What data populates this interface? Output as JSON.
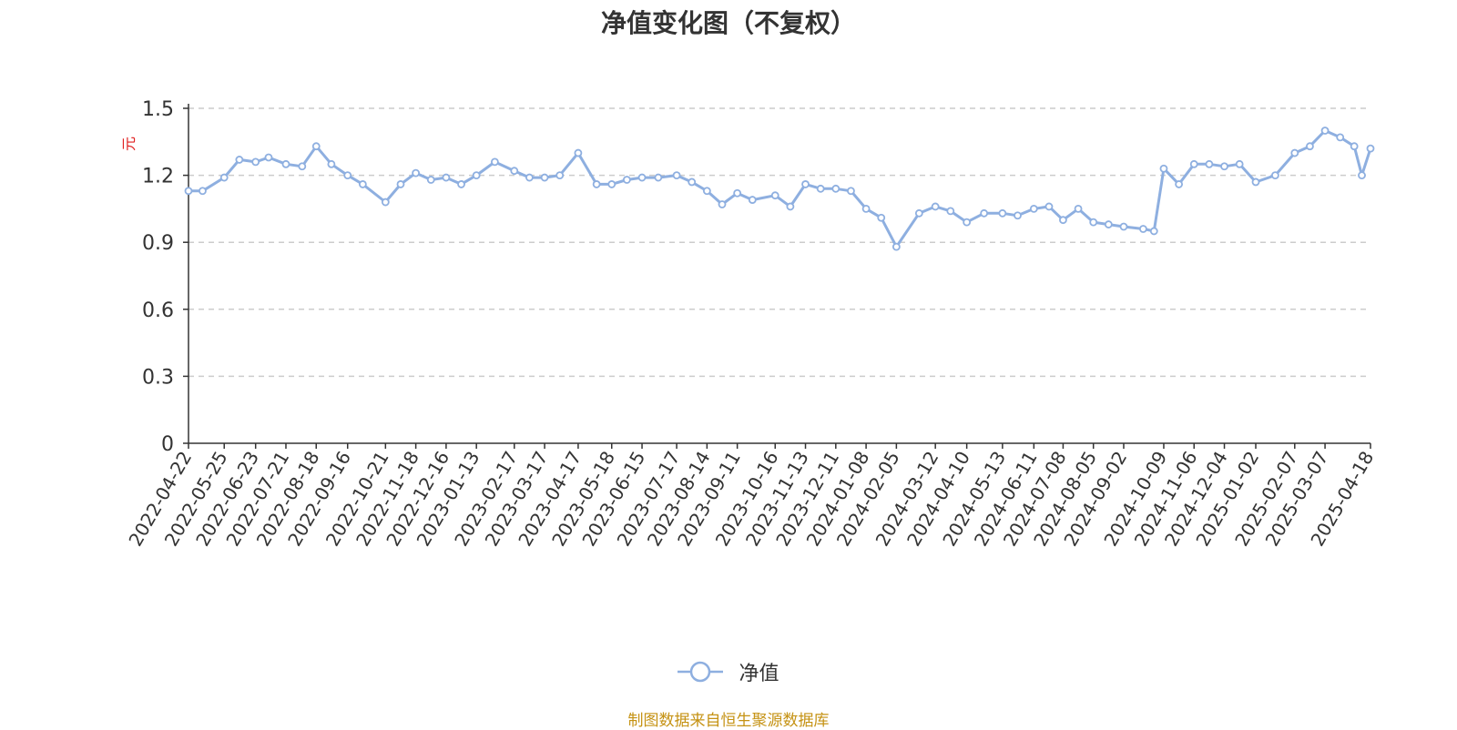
{
  "chart_data": {
    "type": "line",
    "title": "净值变化图（不复权）",
    "ylabel": "元",
    "xlabel": "",
    "ylim": [
      0,
      1.5
    ],
    "yticks": [
      "0",
      "0.3",
      "0.6",
      "0.9",
      "1.2",
      "1.5"
    ],
    "grid": true,
    "legend_position": "bottom-center",
    "line_color": "#8eafe0",
    "ylabel_color": "#e02020",
    "x_tick_labels": [
      "2022-04-22",
      "2022-05-25",
      "2022-06-23",
      "2022-07-21",
      "2022-08-18",
      "2022-09-16",
      "2022-10-21",
      "2022-11-18",
      "2022-12-16",
      "2023-01-13",
      "2023-02-17",
      "2023-03-17",
      "2023-04-17",
      "2023-05-18",
      "2023-06-15",
      "2023-07-17",
      "2023-08-14",
      "2023-09-11",
      "2023-10-16",
      "2023-11-13",
      "2023-12-11",
      "2024-01-08",
      "2024-02-05",
      "2024-03-12",
      "2024-04-10",
      "2024-05-13",
      "2024-06-11",
      "2024-07-08",
      "2024-08-05",
      "2024-09-02",
      "2024-10-09",
      "2024-11-06",
      "2024-12-04",
      "2025-01-02",
      "2025-02-07",
      "2025-03-07",
      "2025-04-18"
    ],
    "series": [
      {
        "name": "净值",
        "x": [
          "2022-04-22",
          "2022-05-05",
          "2022-05-25",
          "2022-06-08",
          "2022-06-23",
          "2022-07-05",
          "2022-07-21",
          "2022-08-05",
          "2022-08-18",
          "2022-09-01",
          "2022-09-16",
          "2022-09-30",
          "2022-10-21",
          "2022-11-04",
          "2022-11-18",
          "2022-12-02",
          "2022-12-16",
          "2022-12-30",
          "2023-01-13",
          "2023-01-30",
          "2023-02-17",
          "2023-03-03",
          "2023-03-17",
          "2023-03-31",
          "2023-04-17",
          "2023-05-04",
          "2023-05-18",
          "2023-06-01",
          "2023-06-15",
          "2023-06-30",
          "2023-07-17",
          "2023-07-31",
          "2023-08-14",
          "2023-08-28",
          "2023-09-11",
          "2023-09-25",
          "2023-10-16",
          "2023-10-30",
          "2023-11-13",
          "2023-11-27",
          "2023-12-11",
          "2023-12-25",
          "2024-01-08",
          "2024-01-22",
          "2024-02-05",
          "2024-02-26",
          "2024-03-12",
          "2024-03-26",
          "2024-04-10",
          "2024-04-26",
          "2024-05-13",
          "2024-05-27",
          "2024-06-11",
          "2024-06-25",
          "2024-07-08",
          "2024-07-22",
          "2024-08-05",
          "2024-08-19",
          "2024-09-02",
          "2024-09-20",
          "2024-09-30",
          "2024-10-09",
          "2024-10-23",
          "2024-11-06",
          "2024-11-20",
          "2024-12-04",
          "2024-12-18",
          "2025-01-02",
          "2025-01-20",
          "2025-02-07",
          "2025-02-21",
          "2025-03-07",
          "2025-03-21",
          "2025-04-03",
          "2025-04-10",
          "2025-04-18"
        ],
        "values": [
          1.13,
          1.13,
          1.19,
          1.27,
          1.26,
          1.28,
          1.25,
          1.24,
          1.33,
          1.25,
          1.2,
          1.16,
          1.08,
          1.16,
          1.21,
          1.18,
          1.19,
          1.16,
          1.2,
          1.26,
          1.22,
          1.19,
          1.19,
          1.2,
          1.3,
          1.16,
          1.16,
          1.18,
          1.19,
          1.19,
          1.2,
          1.17,
          1.13,
          1.07,
          1.12,
          1.09,
          1.11,
          1.06,
          1.16,
          1.14,
          1.14,
          1.13,
          1.05,
          1.01,
          0.88,
          1.03,
          1.06,
          1.04,
          0.99,
          1.03,
          1.03,
          1.02,
          1.05,
          1.06,
          1.0,
          1.05,
          0.99,
          0.98,
          0.97,
          0.96,
          0.95,
          1.23,
          1.16,
          1.25,
          1.25,
          1.24,
          1.25,
          1.17,
          1.2,
          1.3,
          1.33,
          1.4,
          1.37,
          1.33,
          1.2,
          1.32
        ]
      }
    ]
  },
  "legend": {
    "label": "净值"
  },
  "footer": {
    "source_text": "制图数据来自恒生聚源数据库"
  }
}
